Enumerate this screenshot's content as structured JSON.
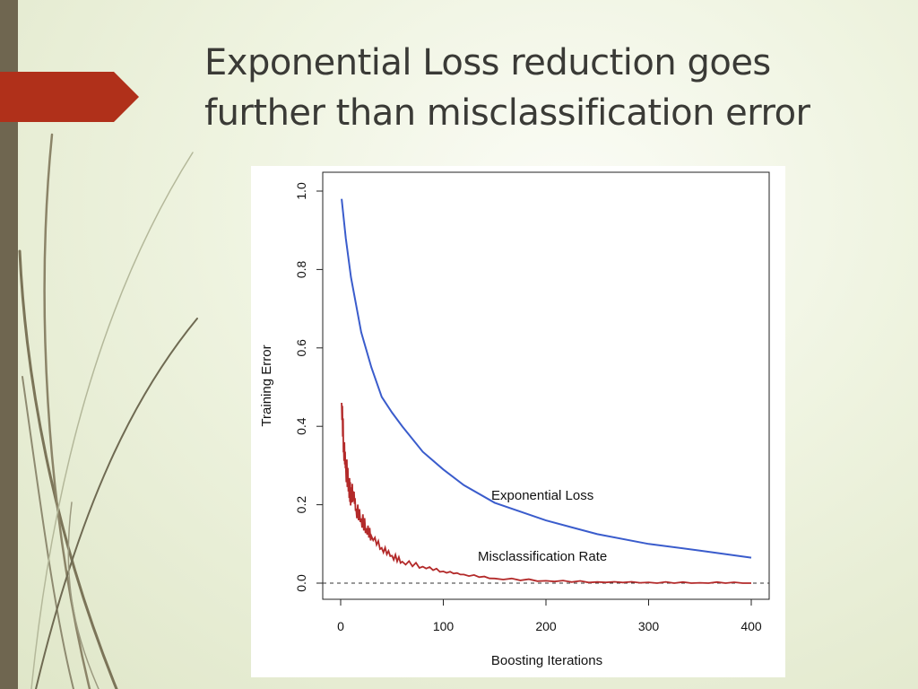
{
  "slide": {
    "title_line1": "Exponential Loss reduction goes",
    "title_line2": "further than misclassification error"
  },
  "colors": {
    "accent": "#b0301a",
    "side_bar": "#6f6650",
    "exp_loss": "#3a5ccc",
    "misclass": "#b32a2a"
  },
  "chart_data": {
    "type": "line",
    "xlabel": "Boosting Iterations",
    "ylabel": "Training Error",
    "xlim": [
      0,
      400
    ],
    "ylim": [
      0,
      1.0
    ],
    "xticks": [
      0,
      100,
      200,
      300,
      400
    ],
    "yticks": [
      "0.0",
      "0.2",
      "0.4",
      "0.6",
      "0.8",
      "1.0"
    ],
    "reference_line": {
      "y": 0,
      "style": "dashed"
    },
    "series": [
      {
        "name": "Exponential Loss",
        "x": [
          1,
          5,
          10,
          20,
          30,
          40,
          50,
          60,
          80,
          100,
          120,
          150,
          200,
          250,
          300,
          350,
          400
        ],
        "y": [
          0.98,
          0.88,
          0.78,
          0.64,
          0.55,
          0.475,
          0.435,
          0.4,
          0.335,
          0.29,
          0.25,
          0.205,
          0.16,
          0.125,
          0.1,
          0.083,
          0.065
        ]
      },
      {
        "name": "Misclassification Rate",
        "x": [
          1,
          3,
          5,
          8,
          10,
          12,
          15,
          20,
          25,
          30,
          40,
          50,
          60,
          80,
          100,
          120,
          150,
          200,
          250,
          300,
          350,
          400
        ],
        "y": [
          0.46,
          0.35,
          0.3,
          0.25,
          0.22,
          0.235,
          0.19,
          0.165,
          0.14,
          0.12,
          0.09,
          0.07,
          0.055,
          0.042,
          0.03,
          0.022,
          0.012,
          0.006,
          0.003,
          0.002,
          0.001,
          0.0
        ]
      }
    ]
  }
}
